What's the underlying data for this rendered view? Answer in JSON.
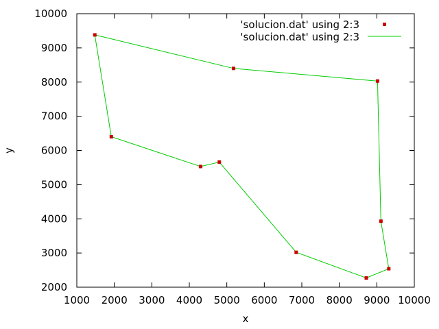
{
  "chart_data": {
    "type": "scatter",
    "title": "",
    "xlabel": "x",
    "ylabel": "y",
    "xlim": [
      1000,
      10000
    ],
    "ylim": [
      2000,
      10000
    ],
    "xticks": [
      1000,
      2000,
      3000,
      4000,
      5000,
      6000,
      7000,
      8000,
      9000,
      10000
    ],
    "yticks": [
      2000,
      3000,
      4000,
      5000,
      6000,
      7000,
      8000,
      9000,
      10000
    ],
    "grid": false,
    "legend_position": "top-right",
    "series": [
      {
        "name": "'solucion.dat' using 2:3",
        "style": "points",
        "color": "#cc0000",
        "x": [
          1480,
          5180,
          9020,
          9110,
          9320,
          8720,
          6850,
          4800,
          4300,
          1920
        ],
        "y": [
          9380,
          8400,
          8030,
          3930,
          2540,
          2270,
          3020,
          5660,
          5530,
          6400
        ]
      },
      {
        "name": "'solucion.dat' using 2:3",
        "style": "lines",
        "color": "#00cc00",
        "x": [
          1480,
          5180,
          9020,
          9110,
          9320,
          8720,
          6850,
          4800,
          4300,
          1920,
          1480
        ],
        "y": [
          9380,
          8400,
          8030,
          3930,
          2540,
          2270,
          3020,
          5660,
          5530,
          6400,
          9380
        ]
      }
    ]
  }
}
